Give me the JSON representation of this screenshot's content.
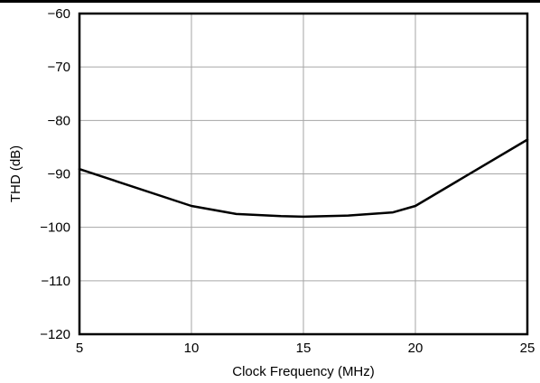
{
  "chart_data": {
    "type": "line",
    "title": "",
    "xlabel": "Clock Frequency (MHz)",
    "ylabel": "THD (dB)",
    "xlim": [
      5,
      25
    ],
    "ylim": [
      -120,
      -60
    ],
    "xticks": [
      5,
      10,
      15,
      20,
      25
    ],
    "yticks": [
      -60,
      -70,
      -80,
      -90,
      -100,
      -110,
      -120
    ],
    "x_tick_labels": [
      "5",
      "10",
      "15",
      "20",
      "25"
    ],
    "y_tick_labels": [
      "−60",
      "−70",
      "−80",
      "−90",
      "−100",
      "−110",
      "−120"
    ],
    "grid": true,
    "series": [
      {
        "color": "#000000",
        "x": [
          5,
          10,
          12,
          14,
          15,
          17,
          19,
          20,
          25
        ],
        "y": [
          -89.1,
          -96.0,
          -97.5,
          -97.9,
          -98.0,
          -97.8,
          -97.2,
          -96.0,
          -83.6
        ]
      }
    ]
  }
}
